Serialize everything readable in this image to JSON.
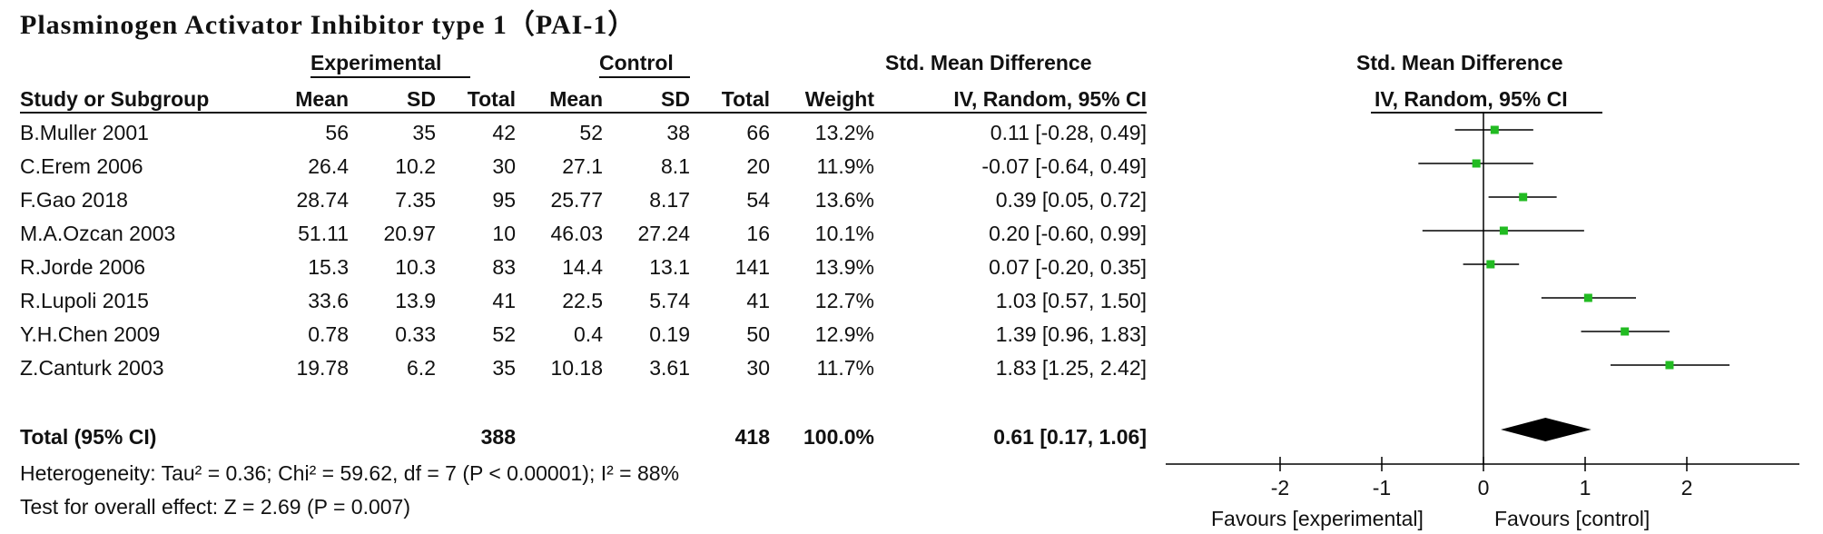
{
  "title": "Plasminogen Activator Inhibitor type 1（PAI-1）",
  "headers": {
    "experimental": "Experimental",
    "control": "Control",
    "smd_table": "Std. Mean Difference",
    "study": "Study or Subgroup",
    "mean": "Mean",
    "sd": "SD",
    "total": "Total",
    "weight": "Weight",
    "method": "IV, Random, 95% CI",
    "smd_plot": "Std. Mean Difference",
    "method_plot": "IV, Random, 95% CI"
  },
  "studies": [
    {
      "name": "B.Muller 2001",
      "e_mean": "56",
      "e_sd": "35",
      "e_total": "42",
      "c_mean": "52",
      "c_sd": "38",
      "c_total": "66",
      "weight": "13.2%",
      "ci_text": "0.11 [-0.28, 0.49]"
    },
    {
      "name": "C.Erem 2006",
      "e_mean": "26.4",
      "e_sd": "10.2",
      "e_total": "30",
      "c_mean": "27.1",
      "c_sd": "8.1",
      "c_total": "20",
      "weight": "11.9%",
      "ci_text": "-0.07 [-0.64, 0.49]"
    },
    {
      "name": "F.Gao 2018",
      "e_mean": "28.74",
      "e_sd": "7.35",
      "e_total": "95",
      "c_mean": "25.77",
      "c_sd": "8.17",
      "c_total": "54",
      "weight": "13.6%",
      "ci_text": "0.39 [0.05, 0.72]"
    },
    {
      "name": "M.A.Ozcan 2003",
      "e_mean": "51.11",
      "e_sd": "20.97",
      "e_total": "10",
      "c_mean": "46.03",
      "c_sd": "27.24",
      "c_total": "16",
      "weight": "10.1%",
      "ci_text": "0.20 [-0.60, 0.99]"
    },
    {
      "name": "R.Jorde 2006",
      "e_mean": "15.3",
      "e_sd": "10.3",
      "e_total": "83",
      "c_mean": "14.4",
      "c_sd": "13.1",
      "c_total": "141",
      "weight": "13.9%",
      "ci_text": "0.07 [-0.20, 0.35]"
    },
    {
      "name": "R.Lupoli 2015",
      "e_mean": "33.6",
      "e_sd": "13.9",
      "e_total": "41",
      "c_mean": "22.5",
      "c_sd": "5.74",
      "c_total": "41",
      "weight": "12.7%",
      "ci_text": "1.03 [0.57, 1.50]"
    },
    {
      "name": "Y.H.Chen 2009",
      "e_mean": "0.78",
      "e_sd": "0.33",
      "e_total": "52",
      "c_mean": "0.4",
      "c_sd": "0.19",
      "c_total": "50",
      "weight": "12.9%",
      "ci_text": "1.39 [0.96, 1.83]"
    },
    {
      "name": "Z.Canturk 2003",
      "e_mean": "19.78",
      "e_sd": "6.2",
      "e_total": "35",
      "c_mean": "10.18",
      "c_sd": "3.61",
      "c_total": "30",
      "weight": "11.7%",
      "ci_text": "1.83 [1.25, 2.42]"
    }
  ],
  "total": {
    "label": "Total (95% CI)",
    "e_total": "388",
    "c_total": "418",
    "weight": "100.0%",
    "ci_text": "0.61 [0.17, 1.06]"
  },
  "heterogeneity": "Heterogeneity: Tau² = 0.36; Chi² = 59.62, df = 7 (P < 0.00001); I² = 88%",
  "overall_effect": "Test for overall effect: Z = 2.69 (P = 0.007)",
  "favours_left": "Favours [experimental]",
  "favours_right": "Favours [control]",
  "colors": {
    "point": "#22bb22",
    "line": "#000000",
    "diamond": "#000000"
  },
  "chart_data": {
    "type": "forest",
    "title": "Plasminogen Activator Inhibitor type 1（PAI-1）",
    "xlabel": "",
    "xlim": [
      -3,
      3
    ],
    "xticks": [
      -2,
      -1,
      0,
      1,
      2
    ],
    "tick_labels": [
      "-2",
      "-1",
      "0",
      "1",
      "2"
    ],
    "categories": [
      "B.Muller 2001",
      "C.Erem 2006",
      "F.Gao 2018",
      "M.A.Ozcan 2003",
      "R.Jorde 2006",
      "R.Lupoli 2015",
      "Y.H.Chen 2009",
      "Z.Canturk 2003"
    ],
    "estimates": [
      0.11,
      -0.07,
      0.39,
      0.2,
      0.07,
      1.03,
      1.39,
      1.83
    ],
    "lower": [
      -0.28,
      -0.64,
      0.05,
      -0.6,
      -0.2,
      0.57,
      0.96,
      1.25
    ],
    "upper": [
      0.49,
      0.49,
      0.72,
      0.99,
      0.35,
      1.5,
      1.83,
      2.42
    ],
    "weights": [
      13.2,
      11.9,
      13.6,
      10.1,
      13.9,
      12.7,
      12.9,
      11.7
    ],
    "pooled": {
      "estimate": 0.61,
      "lower": 0.17,
      "upper": 1.06
    }
  }
}
